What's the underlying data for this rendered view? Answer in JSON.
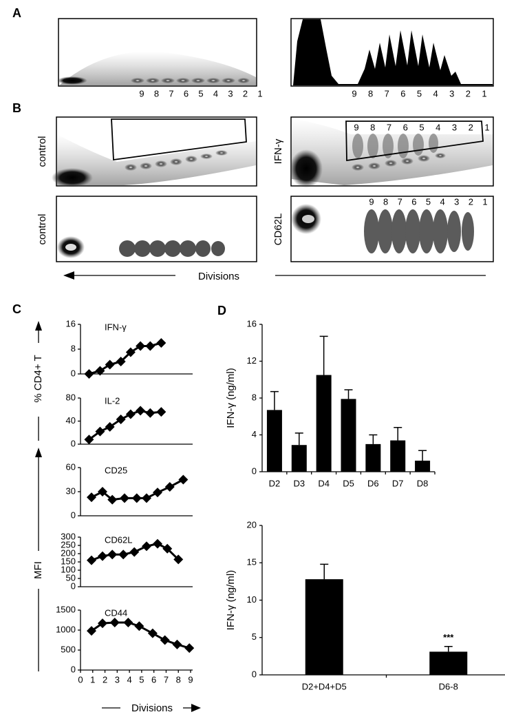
{
  "panel_labels": {
    "a": "A",
    "b": "B",
    "c": "C",
    "d": "D"
  },
  "flow": {
    "division_numbers": [
      "9",
      "8",
      "7",
      "6",
      "5",
      "4",
      "3",
      "2",
      "1"
    ],
    "row_labels": [
      "control",
      "IFN-γ",
      "control",
      "CD62L"
    ],
    "axis_label": "Divisions"
  },
  "panel_c": {
    "y_label_top": "% CD4+ T",
    "y_label_bottom": "MFI",
    "x_label": "Divisions"
  },
  "chart_data": [
    {
      "type": "line",
      "title": "IFN-γ",
      "x": [
        0.7,
        1.6,
        2.4,
        3.3,
        4.1,
        4.9,
        5.7,
        6.6
      ],
      "values": [
        0,
        1,
        3,
        4,
        7,
        9,
        9,
        10
      ],
      "color": "#000000",
      "xlim": [
        0,
        9
      ],
      "ylim": [
        0,
        16
      ],
      "yticks": [
        0,
        8,
        16
      ]
    },
    {
      "type": "line",
      "title": "IL-2",
      "x": [
        0.7,
        1.6,
        2.4,
        3.3,
        4.1,
        4.9,
        5.7,
        6.6
      ],
      "values": [
        8,
        22,
        30,
        43,
        52,
        58,
        54,
        56
      ],
      "color": "#000000",
      "xlim": [
        0,
        9
      ],
      "ylim": [
        0,
        80
      ],
      "yticks": [
        0,
        40,
        80
      ]
    },
    {
      "type": "line",
      "title": "CD25",
      "x": [
        0.9,
        1.8,
        2.6,
        3.6,
        4.6,
        5.4,
        6.3,
        7.3,
        8.4
      ],
      "values": [
        23,
        30,
        20,
        22,
        22,
        22,
        29,
        36,
        45
      ],
      "color": "#000000",
      "xlim": [
        0,
        9
      ],
      "ylim": [
        0,
        60
      ],
      "yticks": [
        0,
        30,
        60
      ]
    },
    {
      "type": "line",
      "title": "CD62L",
      "x": [
        0.9,
        1.8,
        2.6,
        3.5,
        4.4,
        5.4,
        6.3,
        7.1,
        8.0
      ],
      "values": [
        160,
        185,
        195,
        195,
        210,
        245,
        260,
        230,
        165
      ],
      "color": "#000000",
      "xlim": [
        0,
        9
      ],
      "ylim": [
        0,
        300
      ],
      "yticks": [
        0,
        50,
        100,
        150,
        200,
        250,
        300
      ]
    },
    {
      "type": "line",
      "title": "CD44",
      "x": [
        0.9,
        1.8,
        2.8,
        3.9,
        4.8,
        5.9,
        6.9,
        7.9,
        8.9
      ],
      "values": [
        980,
        1170,
        1190,
        1190,
        1100,
        920,
        750,
        640,
        550
      ],
      "color": "#000000",
      "xlim": [
        0,
        9
      ],
      "ylim": [
        0,
        1500
      ],
      "yticks": [
        0,
        500,
        1000,
        1500
      ],
      "xticks": [
        0,
        1,
        2,
        3,
        4,
        5,
        6,
        7,
        8,
        9
      ]
    },
    {
      "type": "bar",
      "categories": [
        "D2",
        "D3",
        "D4",
        "D5",
        "D6",
        "D7",
        "D8"
      ],
      "values": [
        6.7,
        2.9,
        10.5,
        7.9,
        3,
        3.4,
        1.2
      ],
      "errors": [
        2,
        1.3,
        4.2,
        1,
        1,
        1.4,
        1.1
      ],
      "color": "#000000",
      "ylim": [
        0,
        16
      ],
      "yticks": [
        0,
        4,
        8,
        12,
        16
      ],
      "y_label": "IFN-γ (ng/ml)"
    },
    {
      "type": "bar",
      "categories": [
        "D2+D4+D5",
        "D6-8"
      ],
      "values": [
        12.8,
        3.1
      ],
      "errors": [
        2,
        0.7
      ],
      "color": "#000000",
      "ylim": [
        0,
        20
      ],
      "yticks": [
        0,
        5,
        10,
        15,
        20
      ],
      "y_label": "IFN-γ (ng/ml)",
      "annotation": "***"
    }
  ]
}
